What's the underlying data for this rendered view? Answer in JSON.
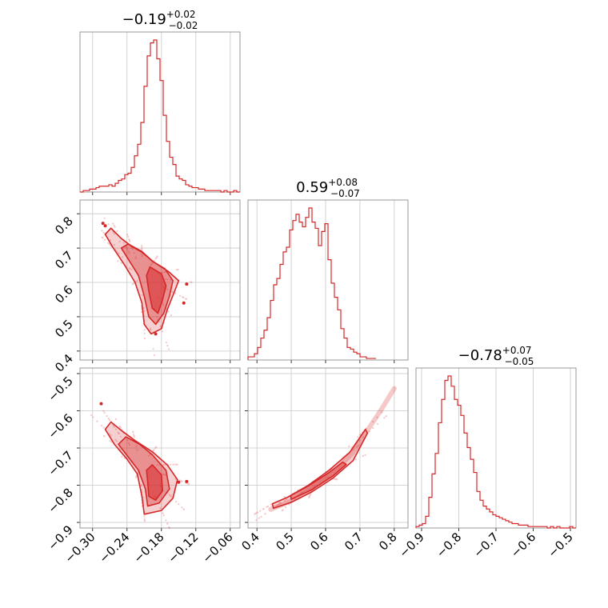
{
  "figure": {
    "colors": {
      "line": "#d62728",
      "fill": "#d62728",
      "frame": "#7f7f7f",
      "grid": "#c8c8c8",
      "text": "#000000"
    }
  },
  "titles": [
    {
      "value": "−0.19",
      "plus": "+0.02",
      "minus": "−0.02"
    },
    {
      "value": "0.59",
      "plus": "+0.08",
      "minus": "−0.07"
    },
    {
      "value": "−0.78",
      "plus": "+0.07",
      "minus": "−0.05"
    }
  ],
  "chart_data": {
    "type": "corner",
    "parameters": [
      {
        "index": 0,
        "range": [
          -0.322,
          -0.043
        ],
        "ticks": [
          -0.3,
          -0.24,
          -0.18,
          -0.12,
          -0.06
        ],
        "tick_labels": [
          "−0.30",
          "−0.24",
          "−0.18",
          "−0.12",
          "−0.06"
        ],
        "median": -0.19,
        "err_plus": 0.02,
        "err_minus": 0.02
      },
      {
        "index": 1,
        "range": [
          0.374,
          0.84
        ],
        "ticks": [
          0.4,
          0.5,
          0.6,
          0.7,
          0.8
        ],
        "tick_labels": [
          "0.4",
          "0.5",
          "0.6",
          "0.7",
          "0.8"
        ],
        "median": 0.59,
        "err_plus": 0.08,
        "err_minus": 0.07
      },
      {
        "index": 2,
        "range": [
          -0.915,
          -0.485
        ],
        "ticks": [
          -0.9,
          -0.8,
          -0.7,
          -0.6,
          -0.5
        ],
        "tick_labels": [
          "−0.9",
          "−0.8",
          "−0.7",
          "−0.6",
          "−0.5"
        ],
        "median": -0.78,
        "err_plus": 0.07,
        "err_minus": 0.05
      }
    ],
    "histograms": [
      {
        "param": 0,
        "edges_start": -0.322,
        "bin_width": 0.00558,
        "counts": [
          0,
          1,
          1,
          2,
          2,
          3,
          4,
          4,
          4,
          5,
          4,
          6,
          8,
          9,
          12,
          13,
          17,
          25,
          33,
          48,
          73,
          94,
          103,
          105,
          92,
          77,
          53,
          35,
          24,
          19,
          11,
          9,
          8,
          5,
          4,
          3,
          3,
          2,
          2,
          1,
          1,
          1,
          1,
          1,
          0,
          1,
          0,
          0,
          1,
          0
        ]
      },
      {
        "param": 1,
        "edges_start": 0.374,
        "bin_width": 0.00932,
        "counts": [
          2,
          2,
          4,
          8,
          14,
          19,
          27,
          38,
          48,
          52,
          61,
          69,
          72,
          83,
          89,
          93,
          88,
          85,
          91,
          97,
          88,
          84,
          73,
          82,
          87,
          64,
          49,
          40,
          32,
          20,
          14,
          8,
          7,
          5,
          4,
          2,
          2,
          1,
          1,
          1
        ]
      },
      {
        "param": 2,
        "edges_start": -0.915,
        "bin_width": 0.0086,
        "counts": [
          1,
          2,
          3,
          8,
          21,
          37,
          51,
          72,
          88,
          101,
          104,
          97,
          88,
          84,
          77,
          65,
          55,
          47,
          38,
          25,
          19,
          15,
          13,
          11,
          9,
          8,
          7,
          6,
          5,
          4,
          3,
          3,
          2,
          2,
          2,
          1,
          1,
          1,
          1,
          1,
          1,
          0,
          1,
          0,
          1,
          0,
          0,
          0,
          1,
          0
        ]
      }
    ],
    "pairs": [
      {
        "x_param": 0,
        "y_param": 1,
        "outliers": [
          [
            -0.278,
            0.765
          ],
          [
            -0.282,
            0.772
          ],
          [
            -0.136,
            0.595
          ],
          [
            -0.141,
            0.54
          ],
          [
            -0.19,
            0.45
          ]
        ],
        "contours": [
          [
            [
              -0.268,
              0.758
            ],
            [
              -0.25,
              0.728
            ],
            [
              -0.232,
              0.705
            ],
            [
              -0.214,
              0.688
            ],
            [
              -0.194,
              0.66
            ],
            [
              -0.168,
              0.632
            ],
            [
              -0.15,
              0.605
            ],
            [
              -0.158,
              0.57
            ],
            [
              -0.17,
              0.52
            ],
            [
              -0.18,
              0.465
            ],
            [
              -0.198,
              0.45
            ],
            [
              -0.21,
              0.478
            ],
            [
              -0.214,
              0.54
            ],
            [
              -0.226,
              0.6
            ],
            [
              -0.244,
              0.65
            ],
            [
              -0.264,
              0.7
            ],
            [
              -0.278,
              0.74
            ]
          ],
          [
            [
              -0.238,
              0.712
            ],
            [
              -0.214,
              0.69
            ],
            [
              -0.196,
              0.662
            ],
            [
              -0.174,
              0.64
            ],
            [
              -0.16,
              0.605
            ],
            [
              -0.166,
              0.56
            ],
            [
              -0.176,
              0.51
            ],
            [
              -0.19,
              0.478
            ],
            [
              -0.202,
              0.5
            ],
            [
              -0.21,
              0.56
            ],
            [
              -0.22,
              0.62
            ],
            [
              -0.238,
              0.668
            ],
            [
              -0.25,
              0.7
            ]
          ],
          [
            [
              -0.2,
              0.645
            ],
            [
              -0.18,
              0.625
            ],
            [
              -0.172,
              0.59
            ],
            [
              -0.178,
              0.55
            ],
            [
              -0.186,
              0.51
            ],
            [
              -0.196,
              0.525
            ],
            [
              -0.202,
              0.575
            ],
            [
              -0.206,
              0.62
            ]
          ]
        ]
      },
      {
        "x_param": 0,
        "y_param": 2,
        "outliers": [
          [
            -0.285,
            -0.581
          ],
          [
            -0.136,
            -0.79
          ],
          [
            -0.15,
            -0.792
          ]
        ],
        "contours": [
          [
            [
              -0.268,
              -0.63
            ],
            [
              -0.248,
              -0.655
            ],
            [
              -0.226,
              -0.68
            ],
            [
              -0.196,
              -0.71
            ],
            [
              -0.17,
              -0.745
            ],
            [
              -0.152,
              -0.785
            ],
            [
              -0.16,
              -0.835
            ],
            [
              -0.18,
              -0.868
            ],
            [
              -0.21,
              -0.878
            ],
            [
              -0.214,
              -0.83
            ],
            [
              -0.222,
              -0.77
            ],
            [
              -0.24,
              -0.73
            ],
            [
              -0.262,
              -0.69
            ],
            [
              -0.278,
              -0.65
            ]
          ],
          [
            [
              -0.242,
              -0.67
            ],
            [
              -0.218,
              -0.69
            ],
            [
              -0.196,
              -0.718
            ],
            [
              -0.172,
              -0.76
            ],
            [
              -0.166,
              -0.81
            ],
            [
              -0.184,
              -0.848
            ],
            [
              -0.204,
              -0.856
            ],
            [
              -0.208,
              -0.81
            ],
            [
              -0.22,
              -0.76
            ],
            [
              -0.24,
              -0.72
            ],
            [
              -0.255,
              -0.69
            ]
          ],
          [
            [
              -0.196,
              -0.745
            ],
            [
              -0.18,
              -0.772
            ],
            [
              -0.178,
              -0.815
            ],
            [
              -0.19,
              -0.84
            ],
            [
              -0.202,
              -0.83
            ],
            [
              -0.204,
              -0.79
            ],
            [
              -0.206,
              -0.76
            ]
          ]
        ]
      },
      {
        "x_param": 1,
        "y_param": 2,
        "ridge": [
          [
            0.44,
            -0.865
          ],
          [
            0.48,
            -0.85
          ],
          [
            0.52,
            -0.832
          ],
          [
            0.56,
            -0.808
          ],
          [
            0.6,
            -0.782
          ],
          [
            0.64,
            -0.75
          ],
          [
            0.68,
            -0.712
          ],
          [
            0.72,
            -0.655
          ],
          [
            0.76,
            -0.6
          ],
          [
            0.8,
            -0.54
          ]
        ],
        "contours": [
          [
            [
              0.448,
              -0.862
            ],
            [
              0.5,
              -0.846
            ],
            [
              0.56,
              -0.818
            ],
            [
              0.62,
              -0.782
            ],
            [
              0.68,
              -0.734
            ],
            [
              0.722,
              -0.66
            ],
            [
              0.716,
              -0.65
            ],
            [
              0.67,
              -0.712
            ],
            [
              0.61,
              -0.76
            ],
            [
              0.55,
              -0.8
            ],
            [
              0.49,
              -0.832
            ],
            [
              0.445,
              -0.85
            ]
          ],
          [
            [
              0.5,
              -0.838
            ],
            [
              0.56,
              -0.812
            ],
            [
              0.62,
              -0.776
            ],
            [
              0.66,
              -0.744
            ],
            [
              0.65,
              -0.738
            ],
            [
              0.61,
              -0.766
            ],
            [
              0.55,
              -0.802
            ],
            [
              0.498,
              -0.828
            ]
          ]
        ]
      }
    ]
  }
}
